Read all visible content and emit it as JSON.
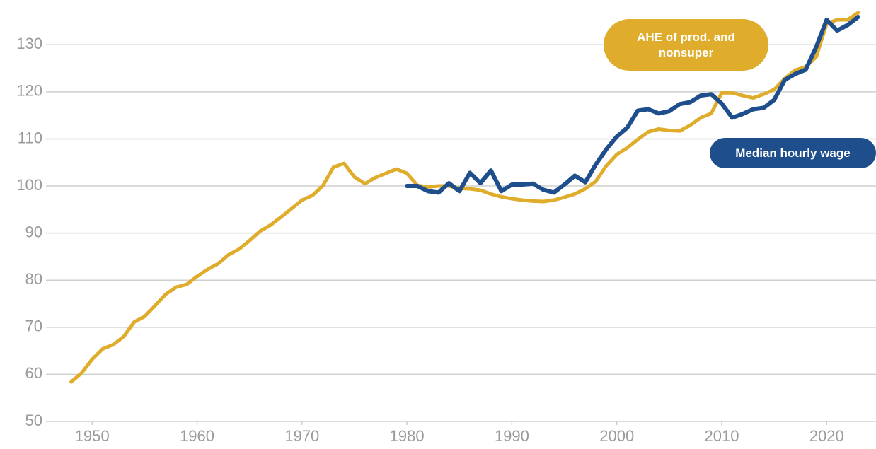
{
  "chart_data": {
    "type": "line",
    "x": [
      1948,
      1949,
      1950,
      1951,
      1952,
      1953,
      1954,
      1955,
      1956,
      1957,
      1958,
      1959,
      1960,
      1961,
      1962,
      1963,
      1964,
      1965,
      1966,
      1967,
      1968,
      1969,
      1970,
      1971,
      1972,
      1973,
      1974,
      1975,
      1976,
      1977,
      1978,
      1979,
      1980,
      1981,
      1982,
      1983,
      1984,
      1985,
      1986,
      1987,
      1988,
      1989,
      1990,
      1991,
      1992,
      1993,
      1994,
      1995,
      1996,
      1997,
      1998,
      1999,
      2000,
      2001,
      2002,
      2003,
      2004,
      2005,
      2006,
      2007,
      2008,
      2009,
      2010,
      2011,
      2012,
      2013,
      2014,
      2015,
      2016,
      2017,
      2018,
      2019,
      2020,
      2021,
      2022,
      2023
    ],
    "series": [
      {
        "name": "AHE of prod. and nonsuper",
        "color": "#e0ac2b",
        "values": [
          58.4,
          60.3,
          63.2,
          65.4,
          66.3,
          68,
          71.1,
          72.3,
          74.6,
          77,
          78.5,
          79.1,
          80.8,
          82.3,
          83.5,
          85.4,
          86.6,
          88.4,
          90.4,
          91.7,
          93.4,
          95.2,
          97,
          98,
          100.1,
          104,
          104.8,
          101.9,
          100.5,
          101.8,
          102.7,
          103.6,
          102.7,
          100.1,
          99.8,
          100,
          100,
          99.5,
          99.4,
          99.1,
          98.3,
          97.7,
          97.3,
          97,
          96.8,
          96.7,
          97,
          97.6,
          98.3,
          99.4,
          101,
          104.3,
          106.7,
          108.1,
          109.9,
          111.5,
          112.1,
          111.8,
          111.7,
          112.9,
          114.5,
          115.4,
          119.8,
          119.8,
          119.2,
          118.7,
          119.5,
          120.5,
          122.8,
          124.6,
          125.3,
          127.4,
          134.5,
          135.3,
          135.3,
          136.8
        ]
      },
      {
        "name": "Median hourly wage",
        "color": "#1f4e8c",
        "values": [
          null,
          null,
          null,
          null,
          null,
          null,
          null,
          null,
          null,
          null,
          null,
          null,
          null,
          null,
          null,
          null,
          null,
          null,
          null,
          null,
          null,
          null,
          null,
          null,
          null,
          null,
          null,
          null,
          null,
          null,
          null,
          null,
          100,
          100,
          98.9,
          98.6,
          100.6,
          98.9,
          102.8,
          100.6,
          103.3,
          98.9,
          100.3,
          100.3,
          100.5,
          99.2,
          98.6,
          100.3,
          102.2,
          100.8,
          104.6,
          107.8,
          110.5,
          112.4,
          116,
          116.3,
          115.4,
          115.9,
          117.4,
          117.8,
          119.2,
          119.5,
          117.5,
          114.5,
          115.3,
          116.3,
          116.6,
          118.3,
          122.5,
          123.8,
          124.7,
          129.5,
          135.3,
          133,
          134.2,
          135.9
        ]
      }
    ],
    "xlim": [
      1945.6,
      2024.7
    ],
    "xticks": [
      1950,
      1960,
      1970,
      1980,
      1990,
      2000,
      2010,
      2020
    ],
    "ylim": [
      50,
      138
    ],
    "yticks": [
      50,
      60,
      70,
      80,
      90,
      100,
      110,
      120,
      130
    ],
    "grid": true
  }
}
